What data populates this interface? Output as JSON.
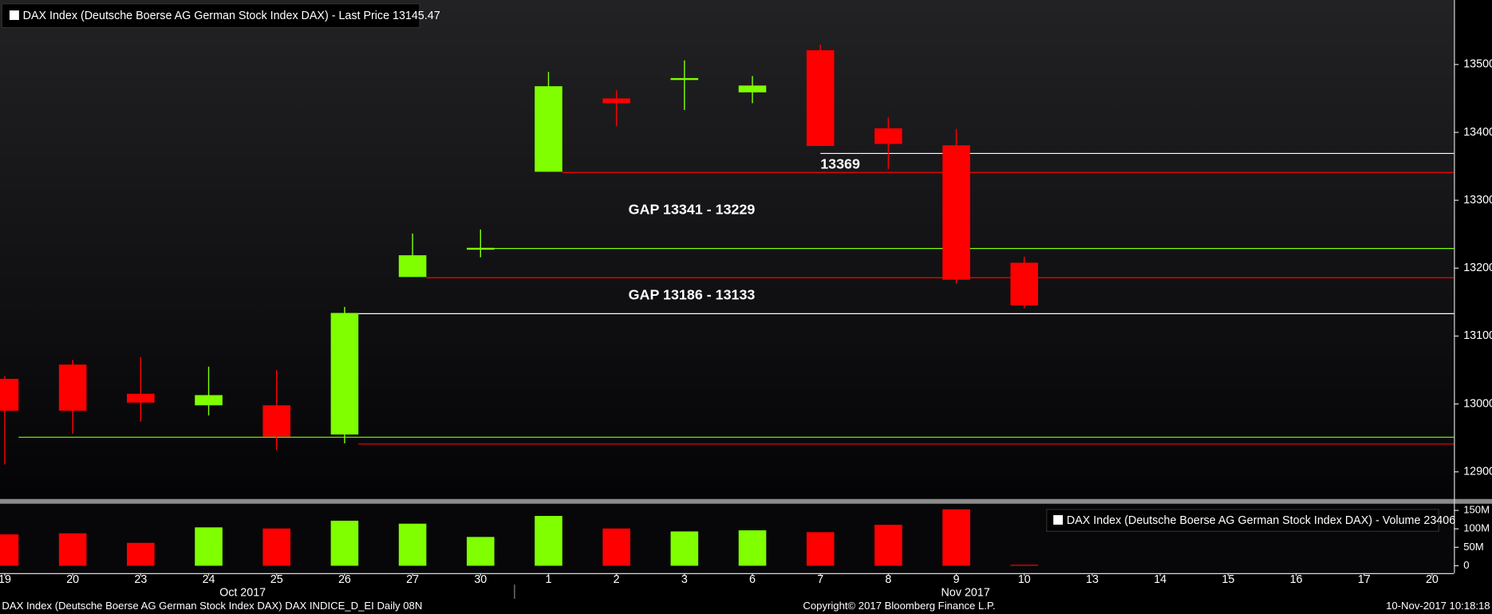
{
  "chart_data": [
    {
      "type": "candlestick",
      "title": "DAX Index (Deutsche Boerse AG German Stock Index DAX) - Last Price 13145.47",
      "categories": [
        "19",
        "20",
        "23",
        "24",
        "25",
        "26",
        "27",
        "30",
        "1",
        "2",
        "3",
        "6",
        "7",
        "8",
        "9",
        "10",
        "13",
        "14",
        "15",
        "16",
        "17",
        "20"
      ],
      "months": [
        {
          "label": "Oct 2017",
          "count": 8
        },
        {
          "label": "Nov 2017",
          "count": 14
        }
      ],
      "open": [
        13037,
        13058,
        13015,
        12998,
        12998,
        12955,
        13187,
        13229,
        13342,
        13450,
        13478,
        13459,
        13521,
        13406,
        13381,
        13208,
        null,
        null,
        null,
        null,
        null,
        null
      ],
      "high": [
        13041,
        13065,
        13069,
        13055,
        13050,
        13143,
        13251,
        13257,
        13489,
        13462,
        13506,
        13483,
        13529,
        13422,
        13405,
        13217,
        null,
        null,
        null,
        null,
        null,
        null
      ],
      "low": [
        12911,
        12956,
        12974,
        12983,
        12932,
        12942,
        13187,
        13216,
        13342,
        13409,
        13433,
        13443,
        13380,
        13346,
        13177,
        13141,
        null,
        null,
        null,
        null,
        null,
        null
      ],
      "close": [
        12990,
        12990,
        13002,
        13013,
        12952,
        13134,
        13219,
        13230,
        13468,
        13443,
        13480,
        13469,
        13380,
        13383,
        13183,
        13145,
        null,
        null,
        null,
        null,
        null,
        null
      ],
      "up_color": "#7fff00",
      "down_color": "#ff0000",
      "ylim": [
        12860,
        13595
      ],
      "yticks": [
        12900,
        13000,
        13100,
        13200,
        13300,
        13400,
        13500
      ],
      "levels": [
        {
          "value": 13369,
          "color": "#ffffff",
          "from": 12,
          "labeled": true
        },
        {
          "value": 13341,
          "color": "#ff0000",
          "from": 8
        },
        {
          "value": 13229,
          "color": "#7fff00",
          "from": 7
        },
        {
          "value": 13186,
          "color": "#ff0000",
          "from": 6
        },
        {
          "value": 13133,
          "color": "#ffffff",
          "from": 5
        },
        {
          "value": 12951,
          "color": "#7fff00",
          "from": 0
        },
        {
          "value": 12941,
          "color": "#ff0000",
          "from": 5
        }
      ],
      "gaps": [
        {
          "label": "GAP 13341 - 13229",
          "levels": [
            1,
            2
          ]
        },
        {
          "label": "GAP 13186 - 13133",
          "levels": [
            3,
            4
          ]
        }
      ]
    },
    {
      "type": "bar",
      "title": "DAX Index (Deutsche Boerse AG German Stock Index DAX) - Volume 23406",
      "values": [
        85,
        88,
        62,
        104,
        101,
        122,
        114,
        78,
        135,
        101,
        93,
        96,
        91,
        111,
        153,
        0.023406,
        null,
        null,
        null,
        null,
        null,
        null
      ],
      "ylim": [
        -20,
        168
      ],
      "yticks": [
        {
          "value": 150,
          "label": "150M"
        },
        {
          "value": 100,
          "label": "100M"
        },
        {
          "value": 50,
          "label": "50M"
        },
        0
      ]
    }
  ],
  "footer": {
    "left": "DAX Index (Deutsche Boerse AG German Stock Index DAX) DAX INDICE_D_EI  Daily 08N",
    "center": "Copyright© 2017 Bloomberg Finance L.P.",
    "right": "10-Nov-2017 10:18:18"
  }
}
